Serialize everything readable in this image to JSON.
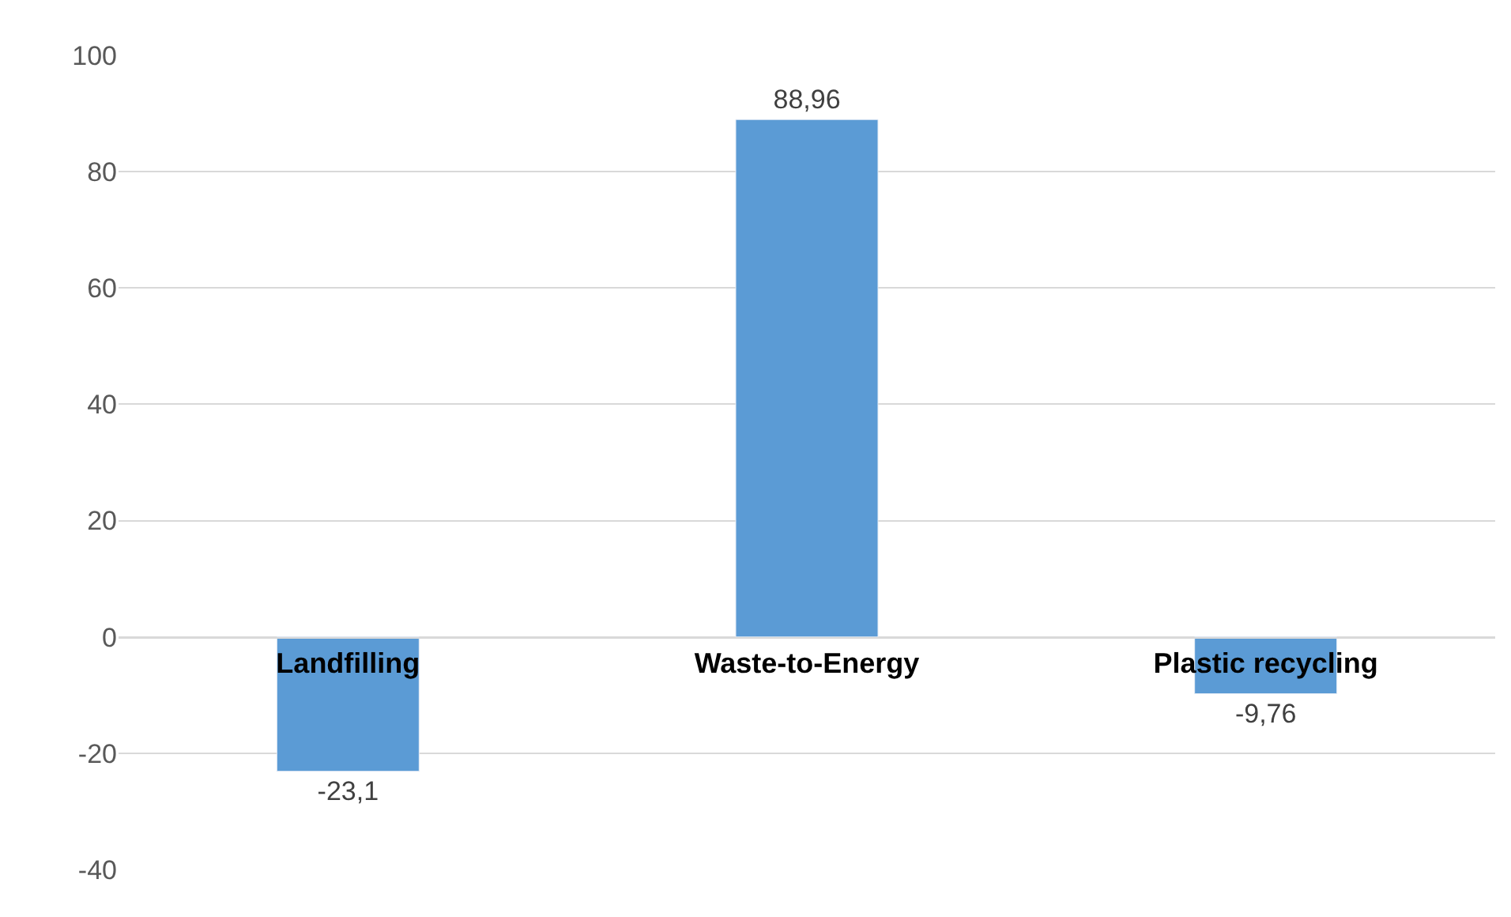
{
  "chart_data": {
    "type": "bar",
    "categories": [
      "Landfilling",
      "Waste-to-Energy",
      "Plastic recycling"
    ],
    "values": [
      -23.1,
      88.96,
      -9.76
    ],
    "value_labels": [
      "-23,1",
      "88,96",
      "-9,76"
    ],
    "color": "#5b9bd5",
    "ylim": [
      -40,
      100
    ],
    "yticks": [
      -40,
      -20,
      0,
      20,
      40,
      60,
      80,
      100
    ],
    "grid": "y",
    "legend": false
  }
}
